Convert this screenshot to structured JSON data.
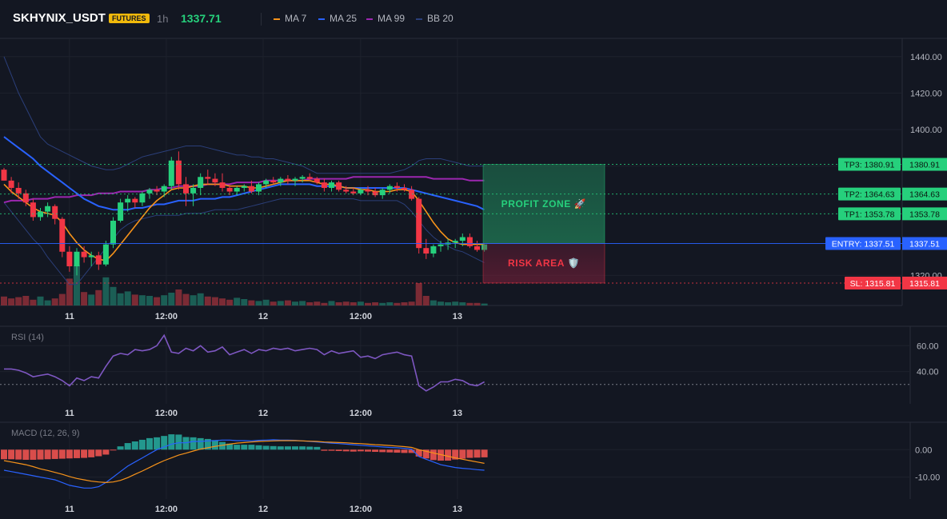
{
  "header": {
    "symbol": "SKHYNIX_USDT",
    "badge": "FUTURES",
    "timeframe": "1h",
    "price": "1337.71",
    "legend": [
      {
        "label": "MA 7",
        "color": "#f7931a"
      },
      {
        "label": "MA 25",
        "color": "#2962ff"
      },
      {
        "label": "MA 99",
        "color": "#9c27b0"
      },
      {
        "label": "BB 20",
        "color": "#2b3f7a"
      }
    ]
  },
  "colors": {
    "up": "#26d07c",
    "down": "#f23645",
    "bg": "#131722"
  },
  "chart_data": [
    {
      "type": "candlestick",
      "name": "price",
      "ylim": [
        1300,
        1450
      ],
      "yticks": [
        "1440.00",
        "1420.00",
        "1400.00",
        "1380.00",
        "1320.00"
      ],
      "x_tick_labels": [
        "11",
        "12:00",
        "12",
        "12:00",
        "13"
      ],
      "candles": [
        [
          1378,
          1379,
          1372,
          1372
        ],
        [
          1372,
          1374,
          1365,
          1368
        ],
        [
          1368,
          1371,
          1362,
          1365
        ],
        [
          1365,
          1367,
          1358,
          1360
        ],
        [
          1360,
          1362,
          1350,
          1352
        ],
        [
          1352,
          1357,
          1350,
          1355
        ],
        [
          1355,
          1360,
          1352,
          1358
        ],
        [
          1358,
          1359,
          1348,
          1351
        ],
        [
          1351,
          1352,
          1330,
          1333
        ],
        [
          1333,
          1336,
          1322,
          1325
        ],
        [
          1325,
          1335,
          1320,
          1333
        ],
        [
          1333,
          1336,
          1327,
          1330
        ],
        [
          1330,
          1333,
          1325,
          1331
        ],
        [
          1331,
          1333,
          1323,
          1326
        ],
        [
          1326,
          1339,
          1325,
          1337
        ],
        [
          1337,
          1352,
          1335,
          1350
        ],
        [
          1350,
          1362,
          1349,
          1360
        ],
        [
          1360,
          1364,
          1355,
          1362
        ],
        [
          1362,
          1363,
          1357,
          1360
        ],
        [
          1360,
          1366,
          1358,
          1365
        ],
        [
          1365,
          1368,
          1362,
          1367
        ],
        [
          1367,
          1369,
          1364,
          1366
        ],
        [
          1366,
          1370,
          1363,
          1369
        ],
        [
          1369,
          1385,
          1367,
          1383
        ],
        [
          1383,
          1388,
          1367,
          1370
        ],
        [
          1370,
          1374,
          1358,
          1365
        ],
        [
          1365,
          1370,
          1358,
          1368
        ],
        [
          1368,
          1376,
          1364,
          1374
        ],
        [
          1374,
          1378,
          1370,
          1373
        ],
        [
          1373,
          1376,
          1369,
          1371
        ],
        [
          1371,
          1376,
          1366,
          1368
        ],
        [
          1368,
          1370,
          1364,
          1366
        ],
        [
          1366,
          1369,
          1364,
          1368
        ],
        [
          1368,
          1370,
          1366,
          1369
        ],
        [
          1369,
          1372,
          1365,
          1366
        ],
        [
          1366,
          1371,
          1364,
          1370
        ],
        [
          1370,
          1373,
          1368,
          1372
        ],
        [
          1372,
          1374,
          1370,
          1371
        ],
        [
          1371,
          1374,
          1369,
          1373
        ],
        [
          1373,
          1375,
          1370,
          1372
        ],
        [
          1372,
          1374,
          1369,
          1373
        ],
        [
          1373,
          1375,
          1371,
          1374
        ],
        [
          1374,
          1376,
          1372,
          1373
        ],
        [
          1373,
          1374,
          1370,
          1371
        ],
        [
          1371,
          1373,
          1366,
          1368
        ],
        [
          1368,
          1372,
          1366,
          1371
        ],
        [
          1371,
          1372,
          1366,
          1367
        ],
        [
          1367,
          1369,
          1365,
          1366
        ],
        [
          1366,
          1368,
          1364,
          1365
        ],
        [
          1365,
          1368,
          1364,
          1367
        ],
        [
          1367,
          1369,
          1364,
          1366
        ],
        [
          1366,
          1368,
          1363,
          1364
        ],
        [
          1364,
          1368,
          1362,
          1367
        ],
        [
          1367,
          1370,
          1365,
          1369
        ],
        [
          1369,
          1371,
          1366,
          1368
        ],
        [
          1368,
          1370,
          1366,
          1367
        ],
        [
          1367,
          1369,
          1361,
          1362
        ],
        [
          1362,
          1363,
          1332,
          1335
        ],
        [
          1335,
          1340,
          1329,
          1332
        ],
        [
          1332,
          1337,
          1330,
          1336
        ],
        [
          1336,
          1339,
          1333,
          1337
        ],
        [
          1337,
          1340,
          1334,
          1338
        ],
        [
          1338,
          1340,
          1335,
          1339
        ],
        [
          1339,
          1343,
          1336,
          1341
        ],
        [
          1341,
          1343,
          1335,
          1336
        ],
        [
          1336,
          1339,
          1333,
          1334
        ],
        [
          1334,
          1337,
          1333,
          1337
        ]
      ],
      "volume": [
        14,
        11,
        13,
        15,
        9,
        14,
        8,
        11,
        18,
        42,
        63,
        21,
        17,
        24,
        44,
        29,
        19,
        22,
        17,
        16,
        15,
        13,
        16,
        20,
        25,
        18,
        16,
        19,
        14,
        13,
        11,
        9,
        12,
        10,
        8,
        7,
        9,
        6,
        7,
        8,
        6,
        7,
        5,
        6,
        4,
        7,
        5,
        6,
        5,
        6,
        4,
        5,
        4,
        5,
        4,
        5,
        6,
        35,
        15,
        8,
        6,
        5,
        6,
        5,
        4,
        4,
        3
      ],
      "ma7": [
        1370,
        1366,
        1363,
        1360,
        1357,
        1355,
        1354,
        1353,
        1349,
        1343,
        1338,
        1334,
        1331,
        1329,
        1328,
        1332,
        1337,
        1342,
        1347,
        1352,
        1357,
        1361,
        1364,
        1367,
        1368,
        1368,
        1369,
        1370,
        1370,
        1370,
        1370,
        1369,
        1369,
        1369,
        1368,
        1368,
        1369,
        1370,
        1371,
        1372,
        1372,
        1372,
        1372,
        1371,
        1370,
        1370,
        1369,
        1368,
        1368,
        1367,
        1367,
        1366,
        1366,
        1366,
        1367,
        1367,
        1366,
        1361,
        1355,
        1349,
        1344,
        1340,
        1338,
        1337,
        1337,
        1337,
        1337
      ],
      "ma25": [
        1396,
        1393,
        1390,
        1387,
        1384,
        1380,
        1377,
        1374,
        1371,
        1368,
        1365,
        1362,
        1360,
        1358,
        1357,
        1356,
        1356,
        1356,
        1357,
        1357,
        1358,
        1359,
        1359,
        1360,
        1361,
        1361,
        1361,
        1362,
        1362,
        1362,
        1363,
        1363,
        1364,
        1365,
        1366,
        1367,
        1368,
        1369,
        1370,
        1370,
        1370,
        1370,
        1370,
        1369,
        1369,
        1369,
        1369,
        1368,
        1368,
        1368,
        1368,
        1368,
        1368,
        1368,
        1368,
        1368,
        1367,
        1366,
        1365,
        1364,
        1363,
        1362,
        1361,
        1360,
        1359,
        1358,
        1356
      ],
      "ma99": [
        1360,
        1361,
        1361,
        1361,
        1362,
        1362,
        1362,
        1363,
        1363,
        1363,
        1364,
        1364,
        1364,
        1365,
        1365,
        1365,
        1366,
        1366,
        1366,
        1366,
        1367,
        1367,
        1368,
        1368,
        1369,
        1369,
        1369,
        1369,
        1370,
        1370,
        1370,
        1370,
        1371,
        1371,
        1371,
        1371,
        1372,
        1372,
        1372,
        1372,
        1372,
        1372,
        1373,
        1373,
        1373,
        1373,
        1373,
        1373,
        1374,
        1374,
        1374,
        1374,
        1374,
        1374,
        1374,
        1374,
        1374,
        1374,
        1374,
        1373,
        1373,
        1373,
        1373,
        1373,
        1372,
        1372,
        1372
      ],
      "bb_upper": [
        1440,
        1430,
        1420,
        1412,
        1404,
        1396,
        1392,
        1390,
        1388,
        1386,
        1384,
        1382,
        1380,
        1379,
        1378,
        1378,
        1379,
        1381,
        1383,
        1385,
        1386,
        1387,
        1388,
        1389,
        1390,
        1391,
        1391,
        1391,
        1390,
        1389,
        1388,
        1387,
        1386,
        1386,
        1385,
        1385,
        1384,
        1384,
        1383,
        1382,
        1381,
        1380,
        1378,
        1376,
        1376,
        1376,
        1376,
        1376,
        1376,
        1376,
        1376,
        1376,
        1376,
        1376,
        1377,
        1378,
        1380,
        1383,
        1384,
        1384,
        1384,
        1383,
        1382,
        1381,
        1380,
        1380,
        1380
      ],
      "bb_lower": [
        1360,
        1355,
        1350,
        1345,
        1340,
        1336,
        1330,
        1325,
        1320,
        1315,
        1315,
        1320,
        1325,
        1330,
        1335,
        1340,
        1345,
        1348,
        1350,
        1351,
        1352,
        1353,
        1353,
        1353,
        1353,
        1354,
        1354,
        1354,
        1355,
        1356,
        1356,
        1356,
        1356,
        1357,
        1358,
        1359,
        1360,
        1361,
        1362,
        1362,
        1362,
        1362,
        1362,
        1362,
        1362,
        1362,
        1362,
        1362,
        1362,
        1361,
        1361,
        1361,
        1361,
        1361,
        1361,
        1359,
        1355,
        1350,
        1345,
        1341,
        1338,
        1336,
        1334,
        1333,
        1331,
        1329,
        1327
      ],
      "levels": [
        {
          "label": "TP3: 1380.91",
          "value": 1380.91,
          "axis_label": "1380.91",
          "color": "#26d07c"
        },
        {
          "label": "TP2: 1364.63",
          "value": 1364.63,
          "axis_label": "1364.63",
          "color": "#26d07c"
        },
        {
          "label": "TP1: 1353.78",
          "value": 1353.78,
          "axis_label": "1353.78",
          "color": "#26d07c"
        },
        {
          "label": "ENTRY: 1337.51",
          "value": 1337.51,
          "axis_label": "1337.51",
          "color": "#2962ff"
        },
        {
          "label": "SL: 1315.81",
          "value": 1315.81,
          "axis_label": "1315.81",
          "color": "#f23645"
        }
      ],
      "zones": {
        "profit": "PROFIT ZONE 🚀",
        "risk": "RISK AREA 🛡️"
      }
    },
    {
      "type": "line",
      "name": "RSI (14)",
      "title": "RSI (14)",
      "ylim": [
        15,
        75
      ],
      "yticks": [
        "60.00",
        "40.00"
      ],
      "x_tick_labels": [
        "11",
        "12:00",
        "12",
        "12:00",
        "13"
      ],
      "values": [
        42,
        42,
        41,
        39,
        36,
        37,
        38,
        36,
        33,
        29,
        35,
        33,
        36,
        35,
        44,
        52,
        54,
        53,
        57,
        56,
        57,
        60,
        68,
        55,
        54,
        58,
        56,
        60,
        55,
        56,
        59,
        53,
        55,
        57,
        54,
        57,
        56,
        58,
        57,
        58,
        56,
        57,
        58,
        57,
        53,
        56,
        54,
        55,
        56,
        51,
        52,
        50,
        53,
        54,
        55,
        53,
        52,
        29,
        25,
        28,
        32,
        32,
        34,
        33,
        30,
        29,
        32
      ],
      "ref_line": 30
    },
    {
      "type": "bar+line",
      "name": "MACD (12, 26, 9)",
      "title": "MACD (12, 26, 9)",
      "ylim": [
        -18,
        10
      ],
      "yticks": [
        "0.00",
        "-10.00"
      ],
      "x_tick_labels": [
        "11",
        "12:00",
        "12",
        "12:00",
        "13"
      ],
      "hist": [
        -3.5,
        -3.5,
        -3.6,
        -3.7,
        -3.7,
        -3.6,
        -3.5,
        -3.4,
        -3.3,
        -3.2,
        -3.1,
        -3,
        -2.8,
        -2.4,
        -1.8,
        -0.2,
        1.2,
        2.4,
        3,
        3.6,
        4.2,
        4.5,
        5,
        5.6,
        5.5,
        4.6,
        4.5,
        4.2,
        3.9,
        3.5,
        2.8,
        2.2,
        1.8,
        1.8,
        1.8,
        1.6,
        1.4,
        1.3,
        1.2,
        1.2,
        1.2,
        1.2,
        1.1,
        1,
        -0.4,
        -0.4,
        -0.5,
        -0.6,
        -0.7,
        -0.6,
        -0.7,
        -0.8,
        -0.9,
        -1,
        -1.1,
        -1.2,
        -1.2,
        -2.5,
        -3.2,
        -3.8,
        -4,
        -4,
        -3.6,
        -3.3,
        -3,
        -2.9,
        -2.8
      ],
      "macd": [
        -7.5,
        -8,
        -8.5,
        -9,
        -9.5,
        -10,
        -10.5,
        -11,
        -12,
        -13,
        -13.5,
        -14,
        -14,
        -13.5,
        -12,
        -10,
        -8,
        -6,
        -4.5,
        -3,
        -1.5,
        0,
        1,
        2,
        2.5,
        2.5,
        3,
        3,
        3.2,
        3.3,
        3.5,
        3.5,
        3.3,
        3.3,
        3.2,
        3.4,
        3.5,
        3.6,
        3.5,
        3.5,
        3.4,
        3.2,
        3,
        2.8,
        2.6,
        2.4,
        2.2,
        2,
        1.8,
        1.6,
        1.4,
        1.2,
        1,
        0.8,
        0.7,
        0.5,
        0.2,
        -2.5,
        -3.5,
        -4.5,
        -5.5,
        -6,
        -6.5,
        -6.8,
        -7,
        -7.3,
        -7.5
      ],
      "signal": [
        -4,
        -4.5,
        -5,
        -5.5,
        -6.2,
        -7,
        -7.6,
        -8.3,
        -9,
        -9.8,
        -10.5,
        -11,
        -11.5,
        -11.8,
        -12,
        -11.8,
        -11.2,
        -10.2,
        -9,
        -7.8,
        -6.5,
        -5.2,
        -4,
        -3,
        -2,
        -1.3,
        -0.5,
        0.2,
        0.7,
        1.2,
        1.6,
        2,
        2.4,
        2.6,
        2.8,
        3,
        3.1,
        3.2,
        3.3,
        3.3,
        3.3,
        3.2,
        3.1,
        3,
        2.8,
        2.7,
        2.6,
        2.5,
        2.3,
        2.2,
        2,
        1.8,
        1.7,
        1.5,
        1.3,
        1.1,
        0.8,
        0,
        -0.6,
        -1.2,
        -1.8,
        -2.4,
        -3,
        -3.5,
        -4,
        -4.5,
        -5
      ]
    }
  ]
}
